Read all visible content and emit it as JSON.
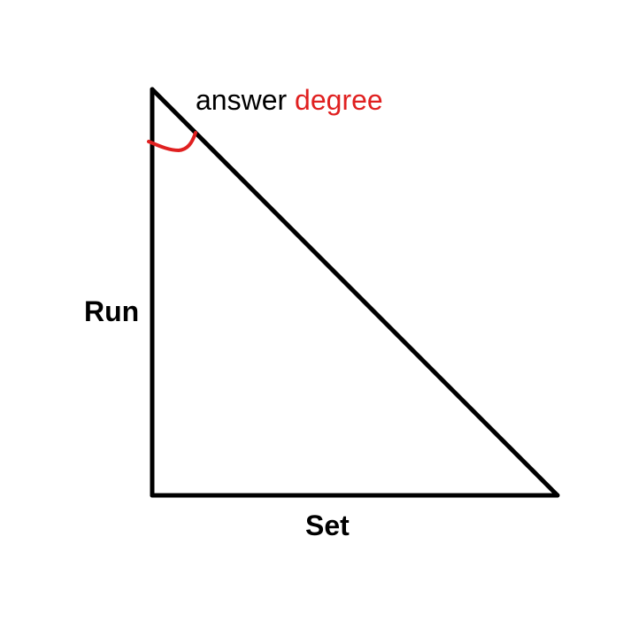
{
  "diagram": {
    "angle_label": {
      "prefix": "answer",
      "highlight": "degree"
    },
    "vertical_side_label": "Run",
    "horizontal_side_label": "Set",
    "colors": {
      "lines": "#000000",
      "accent": "#e02020",
      "background": "#ffffff"
    }
  }
}
